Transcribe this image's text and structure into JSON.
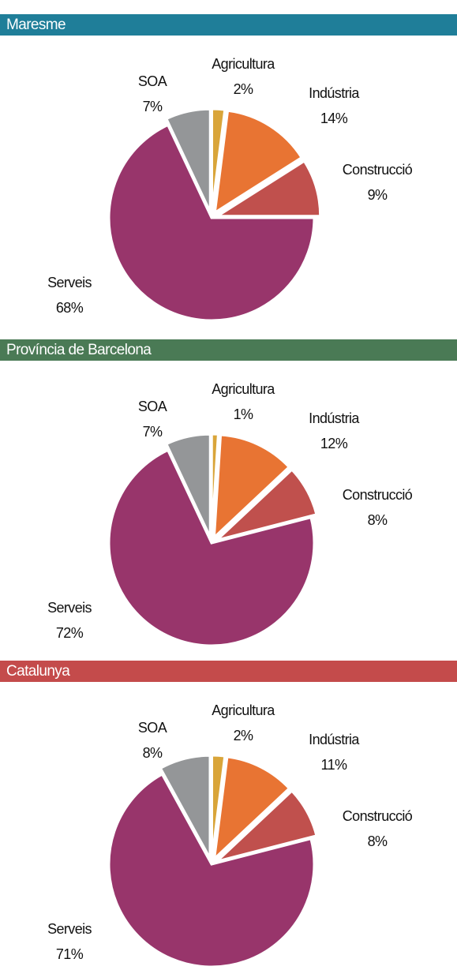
{
  "chart_data": [
    {
      "type": "pie",
      "title": "Maresme",
      "header_color": "#1f7e99",
      "categories": [
        "Agricultura",
        "Indústria",
        "Construcció",
        "Serveis",
        "SOA"
      ],
      "values": [
        2,
        14,
        9,
        68,
        7
      ],
      "value_labels": [
        "2%",
        "14%",
        "9%",
        "68%",
        "7%"
      ],
      "colors": [
        "#d9a53a",
        "#e87433",
        "#c0504d",
        "#98356b",
        "#949698"
      ]
    },
    {
      "type": "pie",
      "title": "Província de Barcelona",
      "header_color": "#4a7a55",
      "categories": [
        "Agricultura",
        "Indústria",
        "Construcció",
        "Serveis",
        "SOA"
      ],
      "values": [
        1,
        12,
        8,
        72,
        7
      ],
      "value_labels": [
        "1%",
        "12%",
        "8%",
        "72%",
        "7%"
      ],
      "colors": [
        "#d9a53a",
        "#e87433",
        "#c0504d",
        "#98356b",
        "#949698"
      ]
    },
    {
      "type": "pie",
      "title": "Catalunya",
      "header_color": "#c44b4b",
      "categories": [
        "Agricultura",
        "Indústria",
        "Construcció",
        "Serveis",
        "SOA"
      ],
      "values": [
        2,
        11,
        8,
        71,
        8
      ],
      "value_labels": [
        "2%",
        "11%",
        "8%",
        "71%",
        "8%"
      ],
      "colors": [
        "#d9a53a",
        "#e87433",
        "#c0504d",
        "#98356b",
        "#949698"
      ]
    }
  ]
}
